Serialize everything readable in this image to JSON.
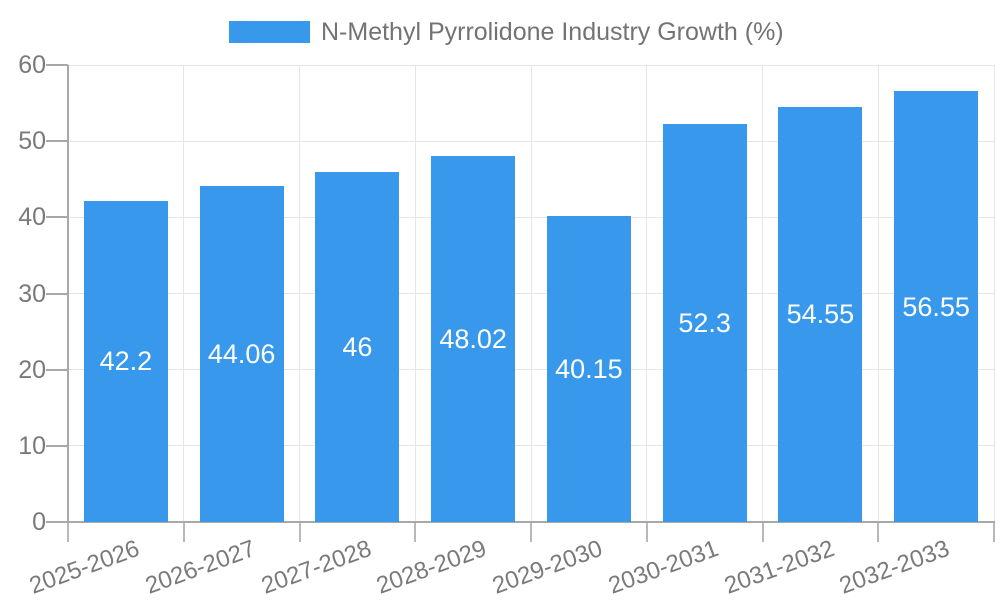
{
  "legend": {
    "label": "N-Methyl Pyrrolidone Industry Growth (%)",
    "position": "top"
  },
  "chart_data": {
    "type": "bar",
    "title": "N-Methyl Pyrrolidone Industry Growth (%)",
    "categories": [
      "2025-2026",
      "2026-2027",
      "2027-2028",
      "2028-2029",
      "2029-2030",
      "2030-2031",
      "2031-2032",
      "2032-2033"
    ],
    "values": [
      42.2,
      44.06,
      46,
      48.02,
      40.15,
      52.3,
      54.55,
      56.55
    ],
    "value_labels": [
      "42.2",
      "44.06",
      "46",
      "48.02",
      "40.15",
      "52.3",
      "54.55",
      "56.55"
    ],
    "xlabel": "",
    "ylabel": "",
    "ylim": [
      0,
      60
    ],
    "yticks": [
      0,
      10,
      20,
      30,
      40,
      50,
      60
    ],
    "grid": true,
    "legend_position": "top",
    "x_tick_rotation_deg": -20
  },
  "colors": {
    "bar": "#3898ec",
    "gridline": "#e6e6e6",
    "axis_line": "#a8a8a8",
    "tick": "#b9b9b9",
    "axis_text": "#7a7a7a",
    "legend_text": "#737373",
    "bar_value_text": "#ffffff",
    "background": "#ffffff"
  }
}
